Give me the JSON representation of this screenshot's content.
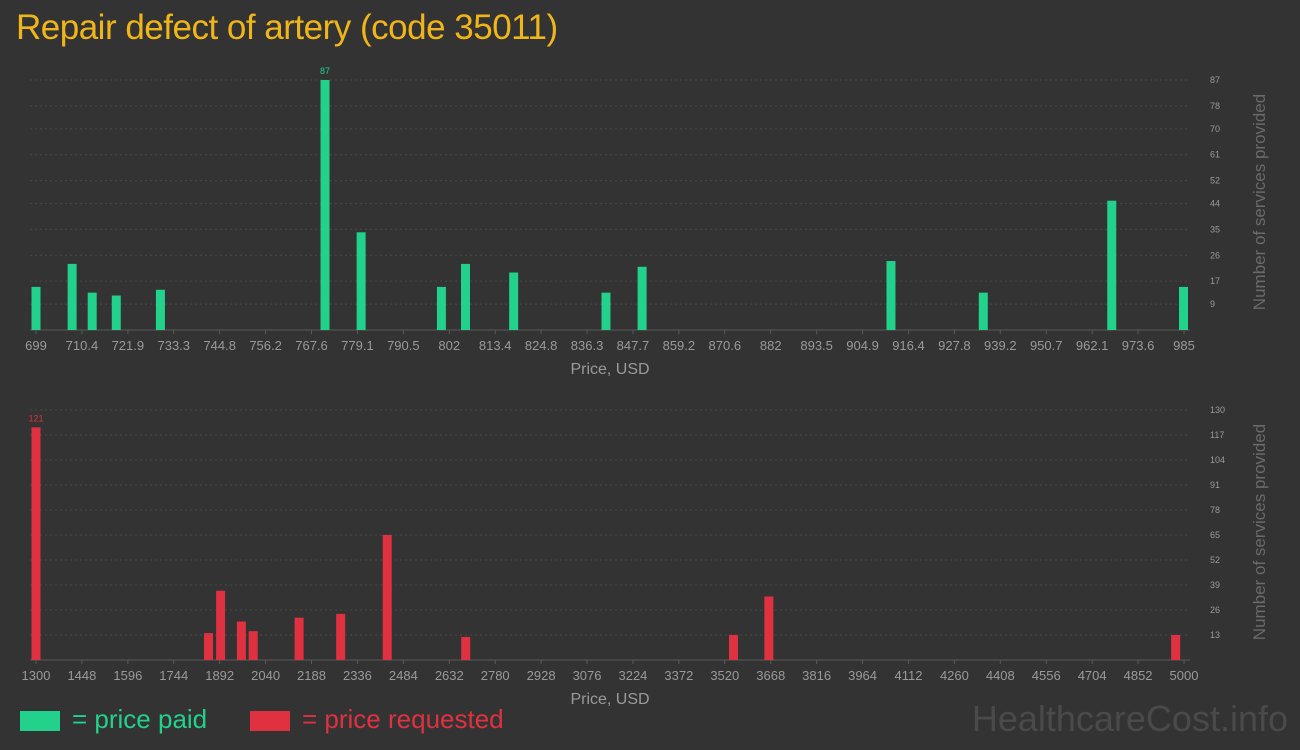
{
  "title": "Repair defect of artery (code 35011)",
  "colors": {
    "paid": "#22d18b",
    "requested": "#e03140",
    "title": "#f0b619",
    "axis_text": "#9a9a9a",
    "grid": "#4a4a4a"
  },
  "legend": {
    "paid": "= price paid",
    "requested": "= price requested"
  },
  "watermark": "HealthcareCost.info",
  "chart_data": [
    {
      "type": "bar",
      "xlabel": "Price, USD",
      "ylabel": "Number of services provided",
      "xlim": [
        699,
        985
      ],
      "x_ticks": [
        "699",
        "710.4",
        "721.9",
        "733.3",
        "744.8",
        "756.2",
        "767.6",
        "779.1",
        "790.5",
        "802",
        "813.4",
        "824.8",
        "836.3",
        "847.7",
        "859.2",
        "870.6",
        "882",
        "893.5",
        "904.9",
        "916.4",
        "927.8",
        "939.2",
        "950.7",
        "962.1",
        "973.6",
        "985"
      ],
      "y_ticks": [
        9,
        17,
        26,
        35,
        44,
        52,
        61,
        70,
        78,
        87
      ],
      "ylim": [
        0,
        87
      ],
      "bars": [
        {
          "x": 699,
          "value": 15
        },
        {
          "x": 708,
          "value": 23
        },
        {
          "x": 713,
          "value": 13
        },
        {
          "x": 719,
          "value": 12
        },
        {
          "x": 730,
          "value": 14
        },
        {
          "x": 771,
          "value": 87
        },
        {
          "x": 780,
          "value": 34
        },
        {
          "x": 800,
          "value": 15
        },
        {
          "x": 806,
          "value": 23
        },
        {
          "x": 818,
          "value": 20
        },
        {
          "x": 841,
          "value": 13
        },
        {
          "x": 850,
          "value": 22
        },
        {
          "x": 912,
          "value": 24
        },
        {
          "x": 935,
          "value": 13
        },
        {
          "x": 967,
          "value": 45
        },
        {
          "x": 988,
          "value": 15
        }
      ],
      "max_label": "87",
      "series": "paid"
    },
    {
      "type": "bar",
      "xlabel": "Price, USD",
      "ylabel": "Number of services provided",
      "xlim": [
        1300,
        5000
      ],
      "x_ticks": [
        "1300",
        "1448",
        "1596",
        "1744",
        "1892",
        "2040",
        "2188",
        "2336",
        "2484",
        "2632",
        "2780",
        "2928",
        "3076",
        "3224",
        "3372",
        "3520",
        "3668",
        "3816",
        "3964",
        "4112",
        "4260",
        "4408",
        "4556",
        "4704",
        "4852",
        "5000"
      ],
      "y_ticks": [
        13,
        26,
        39,
        52,
        65,
        78,
        91,
        104,
        117,
        130
      ],
      "ylim": [
        0,
        130
      ],
      "bars": [
        {
          "x": 1300,
          "value": 121
        },
        {
          "x": 1856,
          "value": 14
        },
        {
          "x": 1895,
          "value": 36
        },
        {
          "x": 1962,
          "value": 20
        },
        {
          "x": 2000,
          "value": 15
        },
        {
          "x": 2148,
          "value": 22
        },
        {
          "x": 2282,
          "value": 24
        },
        {
          "x": 2432,
          "value": 65
        },
        {
          "x": 2685,
          "value": 12
        },
        {
          "x": 3548,
          "value": 13
        },
        {
          "x": 3662,
          "value": 33
        },
        {
          "x": 4973,
          "value": 13
        }
      ],
      "max_label": "121",
      "series": "requested"
    }
  ]
}
